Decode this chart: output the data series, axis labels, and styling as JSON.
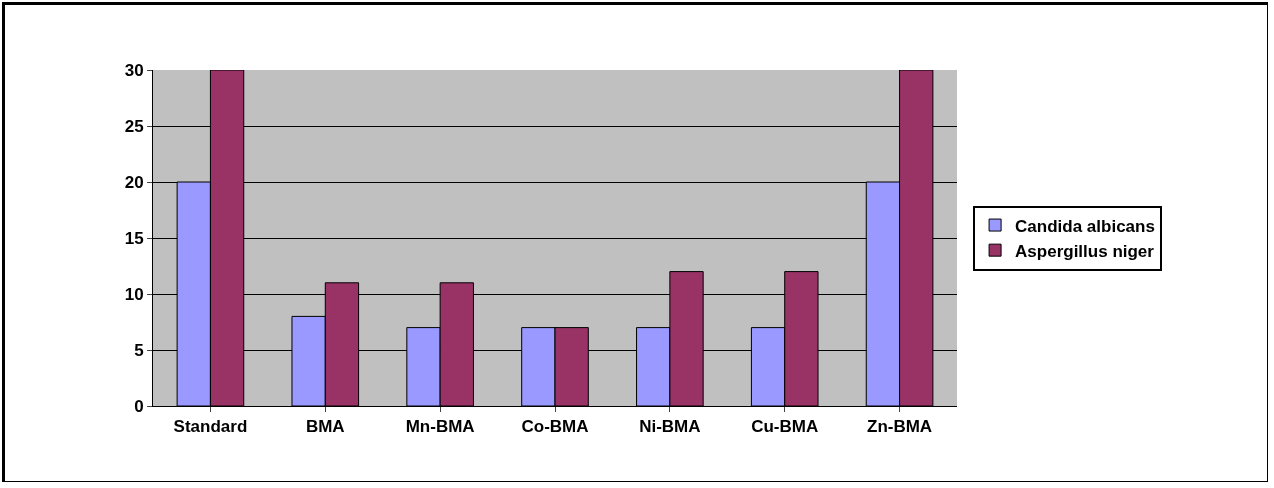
{
  "chart_data": {
    "type": "bar",
    "categories": [
      "Standard",
      "BMA",
      "Mn-BMA",
      "Co-BMA",
      "Ni-BMA",
      "Cu-BMA",
      "Zn-BMA"
    ],
    "series": [
      {
        "name": "Candida albicans",
        "color": "#9999ff",
        "values": [
          20,
          8,
          7,
          7,
          7,
          7,
          20
        ]
      },
      {
        "name": "Aspergillus niger",
        "color": "#993366",
        "values": [
          30,
          11,
          11,
          7,
          12,
          12,
          30
        ]
      }
    ],
    "ylim": [
      0,
      30
    ],
    "yticks": [
      0,
      5,
      10,
      15,
      20,
      25,
      30
    ],
    "grid": "y",
    "legend": "right"
  }
}
